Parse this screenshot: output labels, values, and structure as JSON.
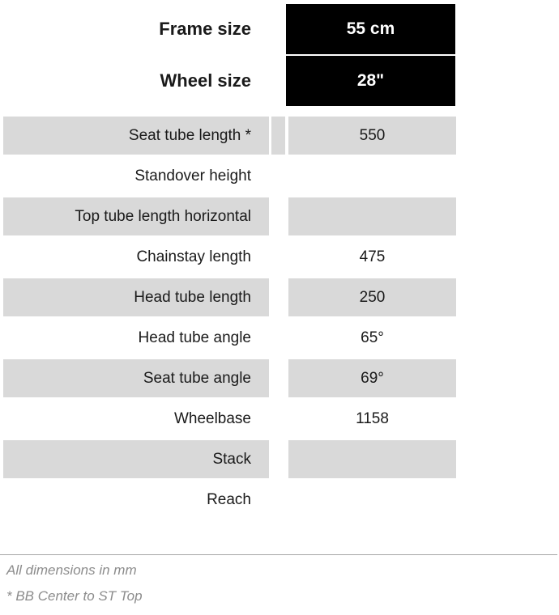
{
  "header": {
    "rows": [
      {
        "label": "Frame size",
        "value": "55 cm"
      },
      {
        "label": "Wheel size",
        "value": "28\""
      }
    ]
  },
  "table": {
    "rows": [
      {
        "label": "Seat tube length *",
        "value": "550"
      },
      {
        "label": "Standover height",
        "value": ""
      },
      {
        "label": "Top tube length horizontal",
        "value": ""
      },
      {
        "label": "Chainstay length",
        "value": "475"
      },
      {
        "label": "Head tube length",
        "value": "250"
      },
      {
        "label": "Head tube angle",
        "value": "65°"
      },
      {
        "label": "Seat tube angle",
        "value": "69°"
      },
      {
        "label": "Wheelbase",
        "value": "1158"
      },
      {
        "label": "Stack",
        "value": ""
      },
      {
        "label": "Reach",
        "value": ""
      }
    ]
  },
  "footer": {
    "notes": [
      "All dimensions in mm",
      "* BB Center to ST Top"
    ]
  },
  "colors": {
    "row_shaded": "#d9d9d9",
    "header_box_bg": "#000000",
    "header_box_text": "#ffffff",
    "label_text": "#1a1a1a",
    "footer_text": "#8c8c8c",
    "footer_line": "#a6a6a6"
  }
}
